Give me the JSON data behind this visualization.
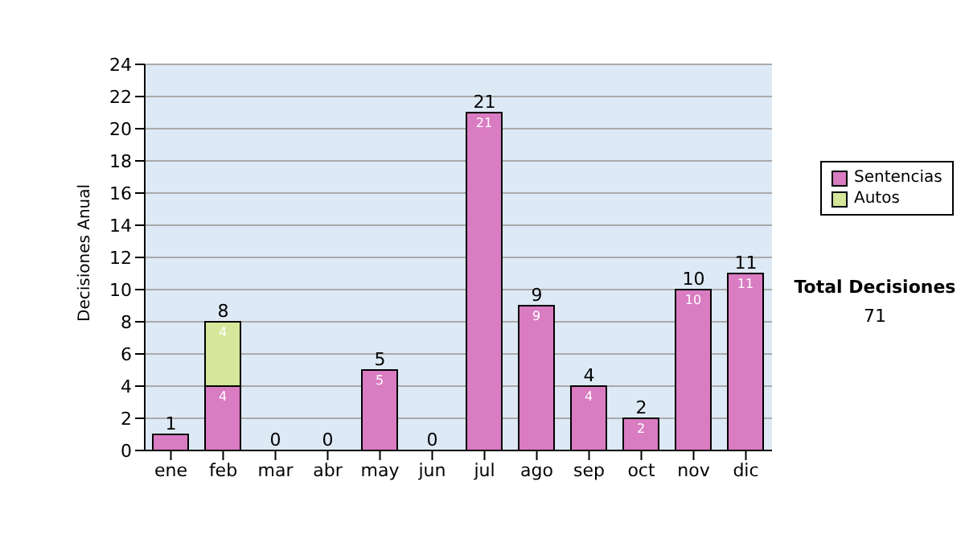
{
  "chart_data": {
    "type": "bar",
    "ylabel": "Decisiones Anual",
    "categories": [
      "ene",
      "feb",
      "mar",
      "abr",
      "may",
      "jun",
      "jul",
      "ago",
      "sep",
      "oct",
      "nov",
      "dic"
    ],
    "series": [
      {
        "name": "Sentencias",
        "color": "#d97cc2",
        "values": [
          1,
          4,
          0,
          0,
          5,
          0,
          21,
          9,
          4,
          2,
          10,
          11
        ],
        "value_labels": [
          null,
          "4",
          null,
          null,
          "5",
          null,
          "21",
          "9",
          "4",
          "2",
          "10",
          "11"
        ]
      },
      {
        "name": "Autos",
        "color": "#d6e69a",
        "values": [
          0,
          4,
          0,
          0,
          0,
          0,
          0,
          0,
          0,
          0,
          0,
          0
        ],
        "value_labels": [
          null,
          "4",
          null,
          null,
          null,
          null,
          null,
          null,
          null,
          null,
          null,
          null
        ]
      }
    ],
    "stacked": true,
    "totals": [
      "1",
      "8",
      "0",
      "0",
      "5",
      "0",
      "21",
      "9",
      "4",
      "2",
      "10",
      "11"
    ],
    "ylim": [
      0,
      24
    ],
    "yticks": [
      0,
      2,
      4,
      6,
      8,
      10,
      12,
      14,
      16,
      18,
      20,
      22,
      24
    ],
    "grid": "y",
    "legend": "right",
    "annotations": [
      "Total Decisiones",
      "71"
    ]
  }
}
